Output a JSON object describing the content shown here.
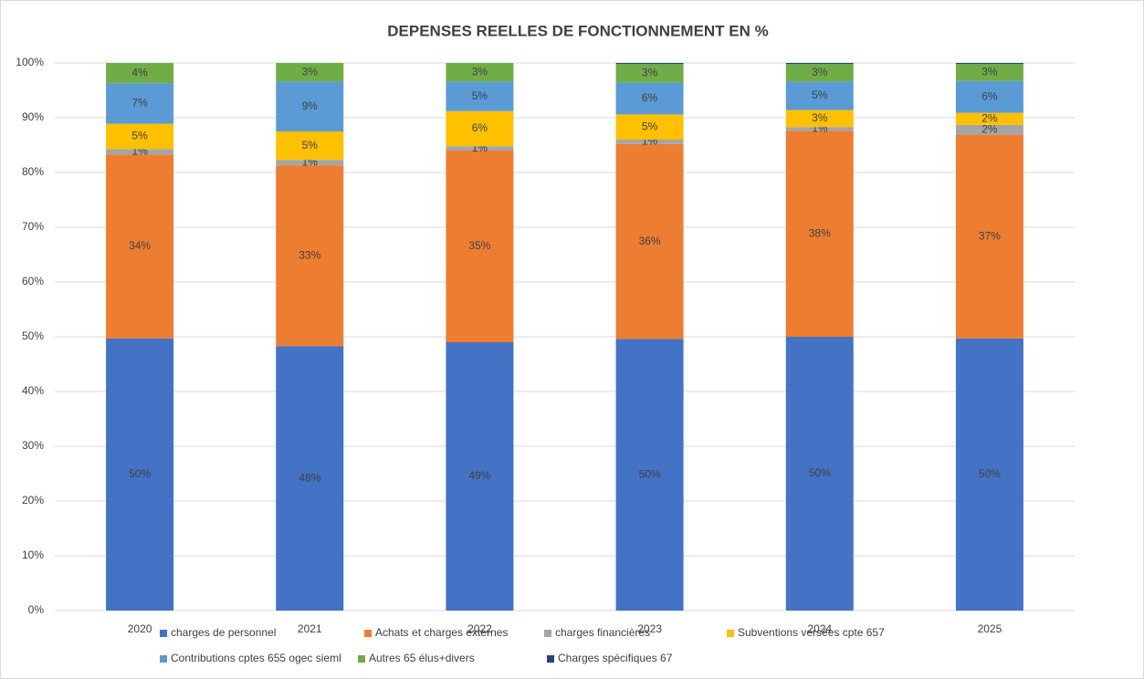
{
  "chart_data": {
    "type": "stacked_bar",
    "title": "DEPENSES REELLES DE FONCTIONNEMENT EN %",
    "categories": [
      "2020",
      "2021",
      "2022",
      "2023",
      "2024",
      "2025"
    ],
    "series": [
      {
        "name": "charges de personnel",
        "color": "#4472c4",
        "values": [
          49.7,
          48.3,
          49.0,
          49.6,
          50.0,
          49.7
        ],
        "value_labels": [
          "50%",
          "48%",
          "49%",
          "50%",
          "50%",
          "50%"
        ]
      },
      {
        "name": "Achats et charges externes",
        "color": "#ed7d31",
        "values": [
          33.6,
          33.0,
          35.0,
          35.6,
          37.6,
          37.2
        ],
        "value_labels": [
          "34%",
          "33%",
          "35%",
          "36%",
          "38%",
          "37%"
        ]
      },
      {
        "name": "charges financières",
        "color": "#a5a5a5",
        "values": [
          1.0,
          1.0,
          0.8,
          0.8,
          0.7,
          1.8
        ],
        "value_labels": [
          "1%",
          "1%",
          "1%",
          "1%",
          "1%",
          "2%"
        ]
      },
      {
        "name": "Subventions versées cpte 657",
        "color": "#ffc000",
        "values": [
          4.6,
          5.2,
          6.4,
          4.6,
          3.1,
          2.2
        ],
        "value_labels": [
          "5%",
          "5%",
          "6%",
          "5%",
          "3%",
          "2%"
        ]
      },
      {
        "name": "Contributions cptes 655 ogec sieml",
        "color": "#5b9bd5",
        "values": [
          7.4,
          9.1,
          5.4,
          5.8,
          5.2,
          5.8
        ],
        "value_labels": [
          "7%",
          "9%",
          "5%",
          "6%",
          "5%",
          "6%"
        ]
      },
      {
        "name": "Autres 65 élus+divers",
        "color": "#70ad47",
        "values": [
          3.7,
          3.4,
          3.4,
          3.4,
          3.2,
          3.1
        ],
        "value_labels": [
          "4%",
          "3%",
          "3%",
          "3%",
          "3%",
          "3%"
        ]
      },
      {
        "name": "Charges spécifiques 67",
        "color": "#264478",
        "values": [
          0,
          0,
          0,
          0.2,
          0.2,
          0.2
        ],
        "value_labels": [
          null,
          null,
          null,
          null,
          null,
          null
        ]
      }
    ],
    "ylim": [
      0,
      100
    ],
    "yticks": [
      {
        "value": 0,
        "label": "0%"
      },
      {
        "value": 10,
        "label": "10%"
      },
      {
        "value": 20,
        "label": "20%"
      },
      {
        "value": 30,
        "label": "30%"
      },
      {
        "value": 40,
        "label": "40%"
      },
      {
        "value": 50,
        "label": "50%"
      },
      {
        "value": 60,
        "label": "60%"
      },
      {
        "value": 70,
        "label": "70%"
      },
      {
        "value": 80,
        "label": "80%"
      },
      {
        "value": 90,
        "label": "90%"
      },
      {
        "value": 100,
        "label": "100%"
      }
    ],
    "grid": true,
    "legend": "bottom"
  }
}
